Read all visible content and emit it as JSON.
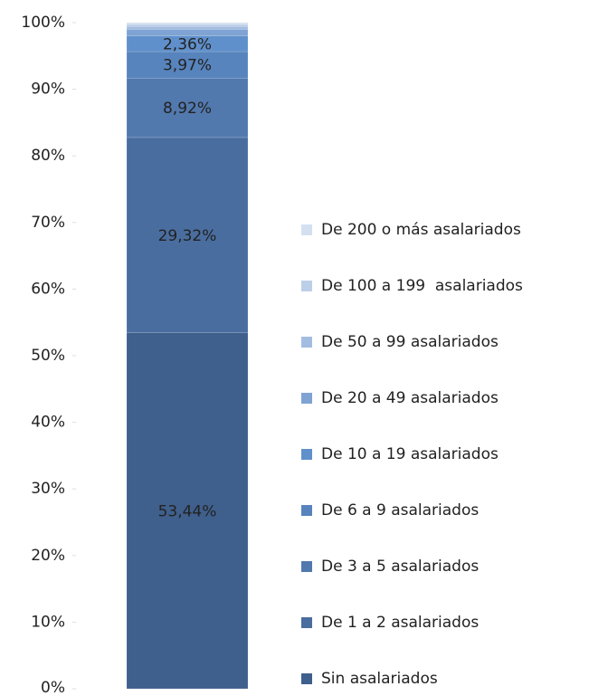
{
  "chart_data": {
    "type": "stacked_bar",
    "categories": [
      null
    ],
    "series": [
      {
        "name": "Sin asalariados",
        "color": "#3f5f8c",
        "values": [
          53.44
        ],
        "value_labels": [
          "53,44%"
        ]
      },
      {
        "name": "De 1 a 2 asalariados",
        "color": "#4a6d9f",
        "values": [
          29.32
        ],
        "value_labels": [
          "29,32%"
        ]
      },
      {
        "name": "De 3 a 5 asalariados",
        "color": "#5279ae",
        "values": [
          8.92
        ],
        "value_labels": [
          "8,92%"
        ]
      },
      {
        "name": "De 6 a 9 asalariados",
        "color": "#5884bd",
        "values": [
          3.97
        ],
        "value_labels": [
          "3,97%"
        ]
      },
      {
        "name": "De 10 a 19 asalariados",
        "color": "#6090cb",
        "values": [
          2.36
        ],
        "value_labels": [
          "2,36%"
        ]
      },
      {
        "name": "De 20 a 49 asalariados",
        "color": "#7fa3d3",
        "values": [
          0.98
        ]
      },
      {
        "name": "De 50 a 99 asalariados",
        "color": "#a3bde0",
        "values": [
          0.45
        ]
      },
      {
        "name": "De 100 a 199  asalariados",
        "color": "#bccfe8",
        "values": [
          0.3
        ]
      },
      {
        "name": "De 200 o más asalariados",
        "color": "#d4e0f0",
        "values": [
          0.26
        ]
      }
    ],
    "ylim": [
      0,
      100
    ],
    "yticks": [
      {
        "value": 0,
        "label": "0%"
      },
      {
        "value": 10,
        "label": "10%"
      },
      {
        "value": 20,
        "label": "20%"
      },
      {
        "value": 30,
        "label": "30%"
      },
      {
        "value": 40,
        "label": "40%"
      },
      {
        "value": 50,
        "label": "50%"
      },
      {
        "value": 60,
        "label": "60%"
      },
      {
        "value": 70,
        "label": "70%"
      },
      {
        "value": 80,
        "label": "80%"
      },
      {
        "value": 90,
        "label": "90%"
      },
      {
        "value": 100,
        "label": "100%"
      }
    ],
    "grid": false
  }
}
